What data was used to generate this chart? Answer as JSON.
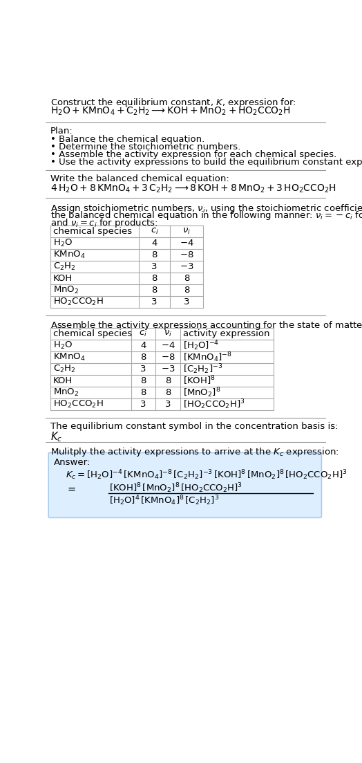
{
  "title_line1": "Construct the equilibrium constant, $K$, expression for:",
  "title_line2": "$\\mathrm{H_2O + KMnO_4 + C_2H_2 \\longrightarrow KOH + MnO_2 + HO_2CCO_2H}$",
  "plan_header": "Plan:",
  "plan_items": [
    "• Balance the chemical equation.",
    "• Determine the stoichiometric numbers.",
    "• Assemble the activity expression for each chemical species.",
    "• Use the activity expressions to build the equilibrium constant expression."
  ],
  "balanced_header": "Write the balanced chemical equation:",
  "balanced_eq": "$\\mathrm{4\\,H_2O + 8\\,KMnO_4 + 3\\,C_2H_2 \\longrightarrow 8\\,KOH + 8\\,MnO_2 + 3\\,HO_2CCO_2H}$",
  "stoich_intro1": "Assign stoichiometric numbers, $\\nu_i$, using the stoichiometric coefficients, $c_i$, from",
  "stoich_intro2": "the balanced chemical equation in the following manner: $\\nu_i = -c_i$ for reactants",
  "stoich_intro3": "and $\\nu_i = c_i$ for products:",
  "table1_data": [
    [
      "$\\mathrm{H_2O}$",
      "4",
      "$-4$"
    ],
    [
      "$\\mathrm{KMnO_4}$",
      "8",
      "$-8$"
    ],
    [
      "$\\mathrm{C_2H_2}$",
      "3",
      "$-3$"
    ],
    [
      "KOH",
      "8",
      "8"
    ],
    [
      "$\\mathrm{MnO_2}$",
      "8",
      "8"
    ],
    [
      "$\\mathrm{HO_2CCO_2H}$",
      "3",
      "3"
    ]
  ],
  "activity_header": "Assemble the activity expressions accounting for the state of matter and $\\nu_i$:",
  "table2_data": [
    [
      "$\\mathrm{H_2O}$",
      "4",
      "$-4$",
      "$[\\mathrm{H_2O}]^{-4}$"
    ],
    [
      "$\\mathrm{KMnO_4}$",
      "8",
      "$-8$",
      "$[\\mathrm{KMnO_4}]^{-8}$"
    ],
    [
      "$\\mathrm{C_2H_2}$",
      "3",
      "$-3$",
      "$[\\mathrm{C_2H_2}]^{-3}$"
    ],
    [
      "KOH",
      "8",
      "8",
      "$[\\mathrm{KOH}]^{8}$"
    ],
    [
      "$\\mathrm{MnO_2}$",
      "8",
      "8",
      "$[\\mathrm{MnO_2}]^{8}$"
    ],
    [
      "$\\mathrm{HO_2CCO_2H}$",
      "3",
      "3",
      "$[\\mathrm{HO_2CCO_2H}]^{3}$"
    ]
  ],
  "kc_header": "The equilibrium constant symbol in the concentration basis is:",
  "kc_symbol": "$K_c$",
  "multiply_header": "Mulitply the activity expressions to arrive at the $K_c$ expression:",
  "answer_label": "Answer:",
  "bg_color": "#ffffff",
  "table_border_color": "#aaaaaa",
  "answer_box_facecolor": "#ddeeff",
  "answer_box_edgecolor": "#aaccee",
  "text_color": "#000000",
  "font_size": 9.5
}
